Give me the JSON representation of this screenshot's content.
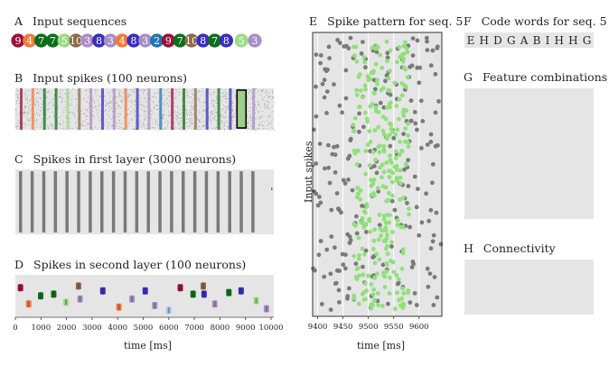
{
  "panels": {
    "a": {
      "letter": "A",
      "title": "Input sequences"
    },
    "b": {
      "letter": "B",
      "title": "Input spikes (100 neurons)"
    },
    "c": {
      "letter": "C",
      "title": "Spikes in first layer (3000 neurons)"
    },
    "d": {
      "letter": "D",
      "title": "Spikes in second layer (100 neurons)"
    },
    "e": {
      "letter": "E",
      "title": "Spike pattern for seq. 5"
    },
    "f": {
      "letter": "F",
      "title": "Code words for seq. 5"
    },
    "g": {
      "letter": "G",
      "title": "Feature combinations"
    },
    "h": {
      "letter": "H",
      "title": "Connectivity"
    }
  },
  "codewords": [
    "E",
    "H",
    "D",
    "G",
    "A",
    "B",
    "I",
    "H",
    "H",
    "G"
  ],
  "colors": {
    "1": "#a2c8ec",
    "2": "#1f77b4",
    "3": "#a98ec6",
    "4": "#f07a3c",
    "5": "#9bdc85",
    "6": "#7b4d2a",
    "7": "#0d6e1a",
    "8": "#3a2eb8",
    "9": "#9b0f3a",
    "10": "#8b6b4a",
    "gray": "#7a7a7a",
    "bg": "#e5e5e5",
    "highlight_green": "#90e07a"
  },
  "chart_data": [
    {
      "panel": "A",
      "type": "table",
      "sequence": [
        "9",
        "4",
        "7",
        "7",
        "5",
        "10",
        "3",
        "8",
        "3",
        "4",
        "8",
        "3",
        "2",
        "9",
        "7",
        "10",
        "8",
        "7",
        "8",
        "5",
        "3"
      ]
    },
    {
      "panel": "B",
      "type": "scatter",
      "title": "Input spikes (100 neurons)",
      "sequence_colors": [
        9,
        4,
        7,
        7,
        5,
        10,
        3,
        8,
        3,
        4,
        8,
        3,
        2,
        9,
        7,
        10,
        8,
        7,
        8,
        5,
        3
      ],
      "highlighted_index": 19
    },
    {
      "panel": "C",
      "type": "scatter",
      "title": "Spikes in first layer (3000 neurons)",
      "stripe_count": 21
    },
    {
      "panel": "D",
      "type": "scatter",
      "title": "Spikes in second layer (100 neurons)",
      "xlabel": "time [ms]",
      "xticks": [
        0,
        1000,
        2000,
        3000,
        4000,
        5000,
        6000,
        7000,
        8000,
        9000,
        10000
      ],
      "xlim": [
        0,
        10000
      ],
      "events": [
        {
          "t": 200,
          "row": 0.2,
          "c": 9
        },
        {
          "t": 520,
          "row": 0.7,
          "c": 4
        },
        {
          "t": 990,
          "row": 0.45,
          "c": 7
        },
        {
          "t": 1500,
          "row": 0.4,
          "c": 7
        },
        {
          "t": 1980,
          "row": 0.65,
          "c": 5
        },
        {
          "t": 2470,
          "row": 0.15,
          "c": 10
        },
        {
          "t": 2530,
          "row": 0.55,
          "c": 3
        },
        {
          "t": 3420,
          "row": 0.3,
          "c": 8
        },
        {
          "t": 4050,
          "row": 0.8,
          "c": 4
        },
        {
          "t": 4560,
          "row": 0.55,
          "c": 3
        },
        {
          "t": 5080,
          "row": 0.3,
          "c": 8
        },
        {
          "t": 5450,
          "row": 0.75,
          "c": 3
        },
        {
          "t": 6000,
          "row": 0.9,
          "c": 1
        },
        {
          "t": 6450,
          "row": 0.2,
          "c": 9
        },
        {
          "t": 6950,
          "row": 0.4,
          "c": 7
        },
        {
          "t": 7350,
          "row": 0.15,
          "c": 10
        },
        {
          "t": 7380,
          "row": 0.4,
          "c": 8
        },
        {
          "t": 7800,
          "row": 0.7,
          "c": 3
        },
        {
          "t": 8350,
          "row": 0.35,
          "c": 7
        },
        {
          "t": 8830,
          "row": 0.3,
          "c": 8
        },
        {
          "t": 9420,
          "row": 0.6,
          "c": 5
        },
        {
          "t": 9820,
          "row": 0.85,
          "c": 3
        }
      ]
    },
    {
      "panel": "E",
      "type": "scatter",
      "title": "Spike pattern for seq. 5",
      "xlabel": "time [ms]",
      "ylabel": "Input spikes",
      "xlim": [
        9390,
        9645
      ],
      "xticks": [
        9400,
        9450,
        9500,
        9550,
        9600
      ],
      "pattern_window": [
        9470,
        9580
      ],
      "grid": true
    }
  ]
}
